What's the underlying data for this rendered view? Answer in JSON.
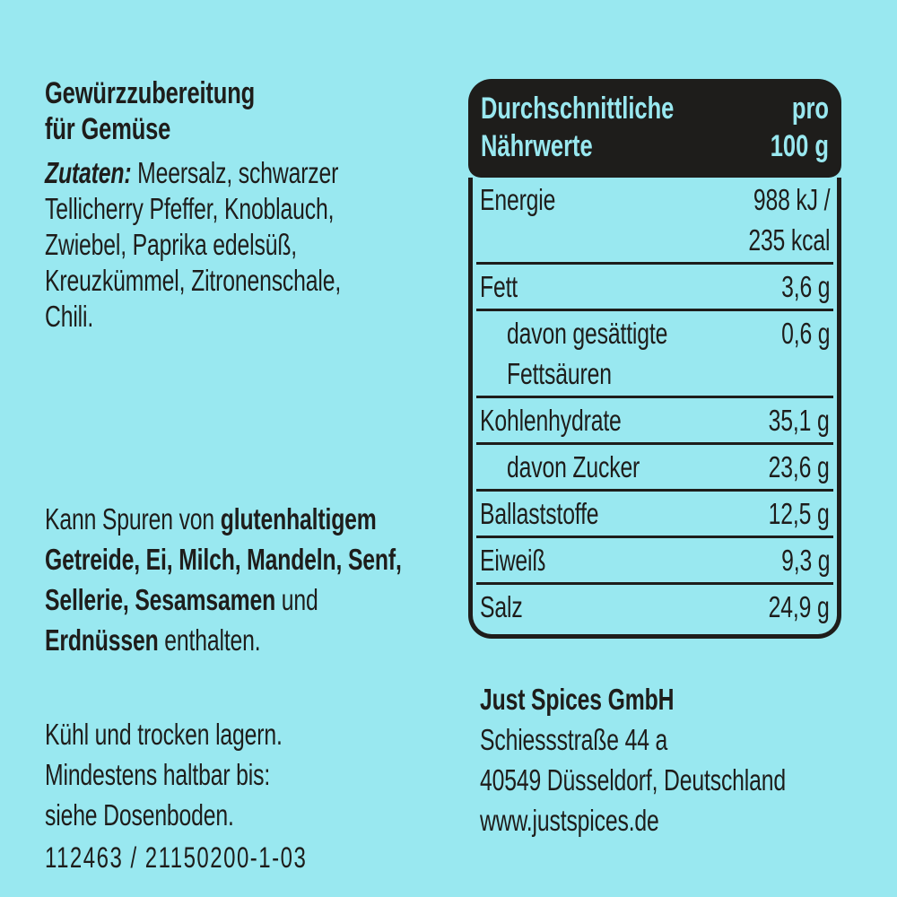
{
  "colors": {
    "background": "#99e8f0",
    "ink": "#1e1d1b",
    "table_header_bg": "#1e1d1b",
    "table_header_text": "#99e8f0"
  },
  "left": {
    "title_lines": [
      "Gewürzzubereitung",
      "für Gemüse"
    ],
    "ingredients_lines": [
      [
        {
          "t": "Zutaten:",
          "b": true,
          "i": true
        },
        {
          "t": " Meersalz, schwarzer"
        }
      ],
      [
        {
          "t": "Tellicherry Pfeffer, Knoblauch,"
        }
      ],
      [
        {
          "t": "Zwiebel, Paprika edelsüß,"
        }
      ],
      [
        {
          "t": "Kreuzkümmel, Zitronenschale,"
        }
      ],
      [
        {
          "t": "Chili."
        }
      ]
    ],
    "allergen_lines": [
      [
        {
          "t": "Kann Spuren von "
        },
        {
          "t": "glutenhaltigem",
          "b": true
        }
      ],
      [
        {
          "t": "Getreide, Ei, Milch, Mandeln, Senf,",
          "b": true
        }
      ],
      [
        {
          "t": "Sellerie, Sesamsamen",
          "b": true
        },
        {
          "t": " und"
        }
      ],
      [
        {
          "t": "Erdnüssen",
          "b": true
        },
        {
          "t": " enthalten."
        }
      ]
    ],
    "storage_lines": [
      "Kühl und trocken lagern.",
      "Mindestens haltbar bis:",
      "siehe Dosenboden."
    ],
    "batch_code": "112463 / 21150200-1-03"
  },
  "nutrition": {
    "header_left_lines": [
      "Durchschnittliche",
      "Nährwerte"
    ],
    "header_right_lines": [
      "pro",
      "100 g"
    ],
    "rows": [
      {
        "label": "Energie",
        "value": "988 kJ /\n235 kcal",
        "indent": false
      },
      {
        "label": "Fett",
        "value": "3,6 g",
        "indent": false
      },
      {
        "label": "davon gesättigte\nFettsäuren",
        "value": "0,6 g",
        "indent": true
      },
      {
        "label": "Kohlenhydrate",
        "value": "35,1 g",
        "indent": false
      },
      {
        "label": "davon Zucker",
        "value": "23,6 g",
        "indent": true
      },
      {
        "label": "Ballaststoffe",
        "value": "12,5 g",
        "indent": false
      },
      {
        "label": "Eiweiß",
        "value": "9,3 g",
        "indent": false
      },
      {
        "label": "Salz",
        "value": "24,9 g",
        "indent": false
      }
    ]
  },
  "address_lines": [
    [
      {
        "t": "Just Spices GmbH",
        "b": true
      }
    ],
    [
      {
        "t": "Schiessstraße 44 a"
      }
    ],
    [
      {
        "t": "40549 Düsseldorf, Deutschland"
      }
    ],
    [
      {
        "t": "www.justspices.de"
      }
    ]
  ]
}
